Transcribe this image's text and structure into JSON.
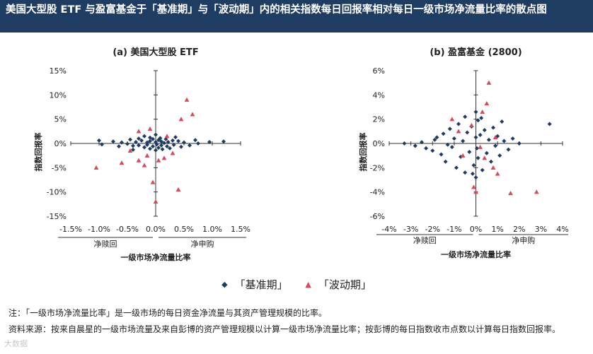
{
  "header": {
    "title": "美国大型股 ETF 与盈富基金于「基准期」与「波动期」内的相关指数每日回报率相对每日一级市场净流量比率的散点图"
  },
  "legend": {
    "base_label": "「基准期」",
    "vol_label": "「波动期」",
    "base_color": "#1f3c63",
    "vol_color": "#d9495c"
  },
  "notes": {
    "note_line": "注：「一级市场净流量比率」是一级市场的每日资金净流量与其资产管理规模的比率。",
    "source_line": "资料来源：按来自晨星的一级市场流量及来自彭博的资产管理规模以计算一级市场净流量比率；按彭博的每日指数收市点数以计算每日指数回报率。"
  },
  "watermark": "大数据",
  "chart_data": [
    {
      "type": "scatter",
      "title": "(a)  美国大型股 ETF",
      "xlabel": "一级市场净流量比率",
      "ylabel": "指数回报率",
      "x_outflow_label": "净赎回",
      "x_inflow_label": "净申购",
      "xlim": [
        -1.5,
        1.5
      ],
      "ylim": [
        -15,
        15
      ],
      "x_ticks": [
        -1.5,
        -1.0,
        -0.5,
        0.0,
        0.5,
        1.0,
        1.5
      ],
      "x_tick_labels": [
        "-1.5%",
        "-1.0%",
        "-0.5%",
        "0.0%",
        "0.5%",
        "1.0%",
        "1.5%"
      ],
      "y_ticks": [
        15,
        10,
        5,
        0,
        -5,
        -10,
        -15
      ],
      "y_tick_labels": [
        "15%",
        "10%",
        "5%",
        "0%",
        "-5%",
        "-10%",
        "-15%"
      ],
      "grid": false,
      "series": [
        {
          "key": "base",
          "marker": "diamond",
          "points": [
            [
              -1.0,
              0.6
            ],
            [
              -0.95,
              -0.2
            ],
            [
              -0.75,
              0.4
            ],
            [
              -0.6,
              0.2
            ],
            [
              -0.5,
              -0.1
            ],
            [
              -0.45,
              0.8
            ],
            [
              -0.4,
              -0.5
            ],
            [
              -0.35,
              0.3
            ],
            [
              -0.3,
              1.0
            ],
            [
              -0.3,
              -0.4
            ],
            [
              -0.25,
              0.6
            ],
            [
              -0.2,
              -0.8
            ],
            [
              -0.2,
              1.5
            ],
            [
              -0.15,
              0.2
            ],
            [
              -0.15,
              -0.3
            ],
            [
              -0.1,
              1.2
            ],
            [
              -0.1,
              -1.1
            ],
            [
              -0.1,
              0.5
            ],
            [
              -0.05,
              -0.6
            ],
            [
              -0.05,
              0.9
            ],
            [
              0.0,
              1.8
            ],
            [
              0.0,
              -1.4
            ],
            [
              0.0,
              0.3
            ],
            [
              0.02,
              -0.2
            ],
            [
              0.05,
              0.7
            ],
            [
              0.05,
              -0.9
            ],
            [
              0.08,
              1.1
            ],
            [
              0.1,
              -0.4
            ],
            [
              0.1,
              0.4
            ],
            [
              0.12,
              -1.2
            ],
            [
              0.15,
              0.1
            ],
            [
              0.18,
              0.9
            ],
            [
              0.2,
              -0.6
            ],
            [
              0.22,
              0.3
            ],
            [
              0.25,
              -1.0
            ],
            [
              0.3,
              0.6
            ],
            [
              0.32,
              -0.3
            ],
            [
              0.4,
              0.5
            ],
            [
              0.45,
              -0.7
            ],
            [
              0.5,
              0.2
            ],
            [
              0.6,
              -0.4
            ],
            [
              0.7,
              0.7
            ],
            [
              0.75,
              0.0
            ],
            [
              0.95,
              0.3
            ],
            [
              1.2,
              0.4
            ],
            [
              -0.65,
              -0.6
            ],
            [
              0.35,
              1.3
            ],
            [
              -0.4,
              -1.3
            ]
          ]
        },
        {
          "key": "vol",
          "marker": "triangle",
          "points": [
            [
              0.55,
              9.0
            ],
            [
              0.65,
              6.0
            ],
            [
              0.45,
              5.0
            ],
            [
              -0.3,
              2.5
            ],
            [
              -0.1,
              3.0
            ],
            [
              -0.45,
              -1.5
            ],
            [
              -0.3,
              -3.5
            ],
            [
              -0.6,
              -4.0
            ],
            [
              -1.05,
              -5.0
            ],
            [
              -0.2,
              -4.5
            ],
            [
              0.05,
              -3.5
            ],
            [
              0.15,
              -3.0
            ],
            [
              0.4,
              -9.5
            ],
            [
              -0.05,
              -8.0
            ],
            [
              0.0,
              -12.0
            ],
            [
              -0.15,
              -2.5
            ],
            [
              0.2,
              1.5
            ],
            [
              0.3,
              -2.0
            ]
          ]
        }
      ]
    },
    {
      "type": "scatter",
      "title": "(b)  盈富基金 (2800)",
      "xlabel": "一级市场净流量比率",
      "ylabel": "指数回报率",
      "x_outflow_label": "净赎回",
      "x_inflow_label": "净申购",
      "xlim": [
        -4,
        4
      ],
      "ylim": [
        -6,
        6
      ],
      "x_ticks": [
        -4,
        -3,
        -2,
        -1,
        0,
        1,
        2,
        3,
        4
      ],
      "x_tick_labels": [
        "-4%",
        "-3%",
        "-2%",
        "-1%",
        "0%",
        "1%",
        "2%",
        "3%",
        "4%"
      ],
      "y_ticks": [
        6,
        4,
        2,
        0,
        -2,
        -4,
        -6
      ],
      "y_tick_labels": [
        "6%",
        "4%",
        "2%",
        "0%",
        "-2%",
        "-4%",
        "-6%"
      ],
      "grid": false,
      "series": [
        {
          "key": "base",
          "marker": "diamond",
          "points": [
            [
              -3.3,
              0.0
            ],
            [
              -2.8,
              -0.2
            ],
            [
              -2.5,
              0.1
            ],
            [
              -2.3,
              -0.4
            ],
            [
              -2.0,
              -0.6
            ],
            [
              -1.8,
              0.5
            ],
            [
              -1.6,
              -0.9
            ],
            [
              -1.5,
              0.8
            ],
            [
              -1.4,
              -1.5
            ],
            [
              -1.2,
              1.2
            ],
            [
              -1.1,
              -0.3
            ],
            [
              -1.0,
              0.4
            ],
            [
              -0.9,
              -2.0
            ],
            [
              -0.8,
              1.6
            ],
            [
              -0.7,
              -1.1
            ],
            [
              -0.6,
              0.2
            ],
            [
              -0.5,
              2.2
            ],
            [
              -0.5,
              -2.4
            ],
            [
              -0.4,
              0.9
            ],
            [
              -0.3,
              -0.7
            ],
            [
              -0.2,
              1.4
            ],
            [
              -0.1,
              -1.8
            ],
            [
              0.0,
              2.6
            ],
            [
              0.0,
              -2.8
            ],
            [
              0.0,
              0.5
            ],
            [
              0.05,
              -0.4
            ],
            [
              0.1,
              1.9
            ],
            [
              0.1,
              -1.2
            ],
            [
              0.2,
              0.7
            ],
            [
              0.3,
              -2.2
            ],
            [
              0.4,
              1.1
            ],
            [
              0.5,
              -0.8
            ],
            [
              0.6,
              0.3
            ],
            [
              0.7,
              -1.5
            ],
            [
              0.8,
              1.3
            ],
            [
              0.9,
              -0.2
            ],
            [
              1.0,
              0.6
            ],
            [
              1.1,
              -1.0
            ],
            [
              1.3,
              0.2
            ],
            [
              1.5,
              -0.5
            ],
            [
              1.7,
              0.4
            ],
            [
              2.0,
              0.0
            ],
            [
              3.4,
              1.6
            ],
            [
              -1.9,
              0.3
            ],
            [
              -1.3,
              -0.1
            ],
            [
              0.25,
              2.1
            ],
            [
              -0.15,
              -2.5
            ],
            [
              1.2,
              1.8
            ]
          ]
        },
        {
          "key": "vol",
          "marker": "triangle",
          "points": [
            [
              0.6,
              5.0
            ],
            [
              0.5,
              3.3
            ],
            [
              0.3,
              2.6
            ],
            [
              -0.2,
              1.5
            ],
            [
              0.9,
              0.5
            ],
            [
              -0.8,
              1.0
            ],
            [
              -0.6,
              -1.0
            ],
            [
              0.8,
              -2.0
            ],
            [
              0.4,
              -1.2
            ],
            [
              1.6,
              -4.1
            ],
            [
              2.8,
              -4.0
            ],
            [
              0.0,
              -4.0
            ],
            [
              -0.1,
              -3.6
            ],
            [
              1.0,
              -2.5
            ],
            [
              -1.1,
              2.0
            ],
            [
              0.2,
              -0.3
            ]
          ]
        }
      ]
    }
  ]
}
